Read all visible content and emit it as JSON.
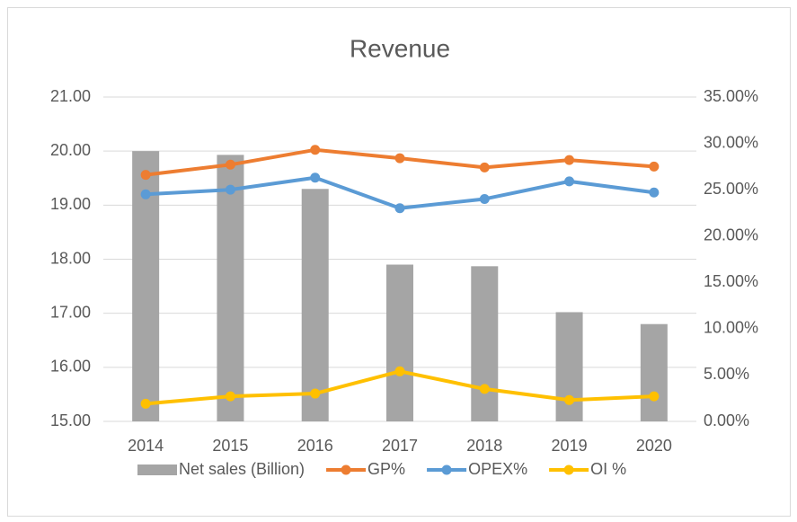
{
  "chart_data": {
    "type": "bar-line",
    "title": "Revenue",
    "categories": [
      "2014",
      "2015",
      "2016",
      "2017",
      "2018",
      "2019",
      "2020"
    ],
    "series": [
      {
        "name": "Net sales (Billion)",
        "type": "bar",
        "color": "#a5a5a5",
        "values": [
          20.0,
          19.93,
          19.3,
          17.9,
          17.87,
          17.02,
          16.8
        ]
      },
      {
        "name": "GP%",
        "type": "line",
        "axis": "y2",
        "color": "#ed7d31",
        "values": [
          26.6,
          27.7,
          29.3,
          28.4,
          27.4,
          28.2,
          27.5
        ]
      },
      {
        "name": "OPEX%",
        "type": "line",
        "axis": "y2",
        "color": "#5b9bd5",
        "values": [
          24.5,
          25.0,
          26.3,
          23.0,
          24.0,
          25.9,
          24.7
        ]
      },
      {
        "name": "OI %",
        "type": "line",
        "axis": "y2",
        "color": "#ffc000",
        "values": [
          1.9,
          2.7,
          3.0,
          5.4,
          3.5,
          2.3,
          2.7
        ]
      }
    ],
    "ylim": [
      15,
      21
    ],
    "yticks": [
      {
        "value": 15,
        "label": "15.00"
      },
      {
        "value": 16,
        "label": "16.00"
      },
      {
        "value": 17,
        "label": "17.00"
      },
      {
        "value": 18,
        "label": "18.00"
      },
      {
        "value": 19,
        "label": "19.00"
      },
      {
        "value": 20,
        "label": "20.00"
      },
      {
        "value": 21,
        "label": "21.00"
      }
    ],
    "y2lim": [
      0,
      35
    ],
    "y2ticks": [
      {
        "value": 0,
        "label": "0.00%"
      },
      {
        "value": 5,
        "label": "5.00%"
      },
      {
        "value": 10,
        "label": "10.00%"
      },
      {
        "value": 15,
        "label": "15.00%"
      },
      {
        "value": 20,
        "label": "20.00%"
      },
      {
        "value": 25,
        "label": "25.00%"
      },
      {
        "value": 30,
        "label": "30.00%"
      },
      {
        "value": 35,
        "label": "35.00%"
      }
    ],
    "grid": true,
    "legend": "bottom"
  }
}
